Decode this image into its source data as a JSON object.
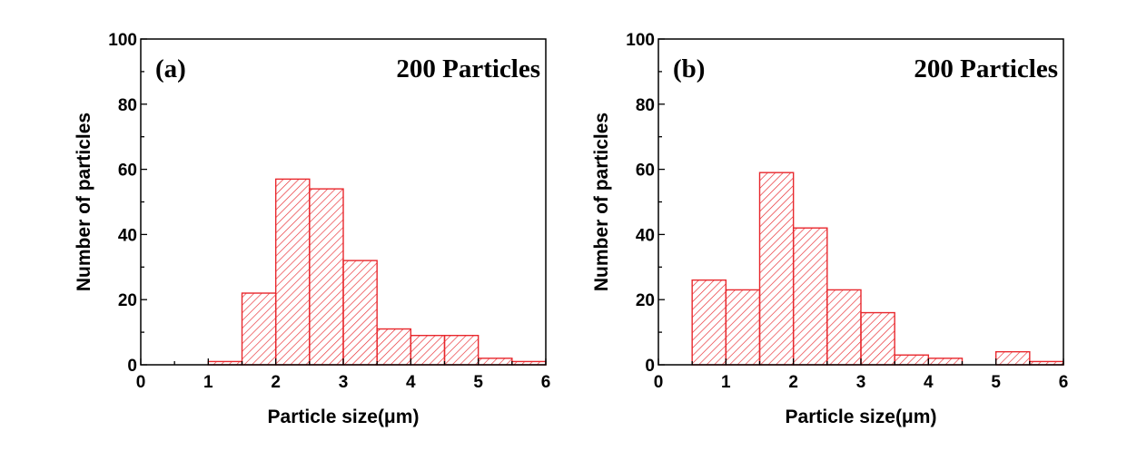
{
  "chart_data": [
    {
      "type": "bar",
      "panel_label": "(a)",
      "annotation": "200 Particles",
      "xlabel": "Particle size(μm)",
      "ylabel": "Number of particles",
      "xlim": [
        0,
        6
      ],
      "ylim": [
        0,
        100
      ],
      "xticks": [
        "0",
        "1",
        "2",
        "3",
        "4",
        "5",
        "6"
      ],
      "yticks": [
        "0",
        "20",
        "40",
        "60",
        "80",
        "100"
      ],
      "bar_color": "#e8282d",
      "bins": [
        {
          "x0": 1.0,
          "x1": 1.5,
          "value": 1
        },
        {
          "x0": 1.5,
          "x1": 2.0,
          "value": 22
        },
        {
          "x0": 2.0,
          "x1": 2.5,
          "value": 57
        },
        {
          "x0": 2.5,
          "x1": 3.0,
          "value": 54
        },
        {
          "x0": 3.0,
          "x1": 3.5,
          "value": 32
        },
        {
          "x0": 3.5,
          "x1": 4.0,
          "value": 11
        },
        {
          "x0": 4.0,
          "x1": 4.5,
          "value": 9
        },
        {
          "x0": 4.5,
          "x1": 5.0,
          "value": 9
        },
        {
          "x0": 5.0,
          "x1": 5.5,
          "value": 2
        },
        {
          "x0": 5.5,
          "x1": 6.0,
          "value": 1
        }
      ]
    },
    {
      "type": "bar",
      "panel_label": "(b)",
      "annotation": "200 Particles",
      "xlabel": "Particle size(μm)",
      "ylabel": "Number of particles",
      "xlim": [
        0,
        6
      ],
      "ylim": [
        0,
        100
      ],
      "xticks": [
        "0",
        "1",
        "2",
        "3",
        "4",
        "5",
        "6"
      ],
      "yticks": [
        "0",
        "20",
        "40",
        "60",
        "80",
        "100"
      ],
      "bar_color": "#e8282d",
      "bins": [
        {
          "x0": 0.5,
          "x1": 1.0,
          "value": 26
        },
        {
          "x0": 1.0,
          "x1": 1.5,
          "value": 23
        },
        {
          "x0": 1.5,
          "x1": 2.0,
          "value": 59
        },
        {
          "x0": 2.0,
          "x1": 2.5,
          "value": 42
        },
        {
          "x0": 2.5,
          "x1": 3.0,
          "value": 23
        },
        {
          "x0": 3.0,
          "x1": 3.5,
          "value": 16
        },
        {
          "x0": 3.5,
          "x1": 4.0,
          "value": 3
        },
        {
          "x0": 4.0,
          "x1": 4.5,
          "value": 2
        },
        {
          "x0": 4.5,
          "x1": 5.0,
          "value": 0
        },
        {
          "x0": 5.0,
          "x1": 5.5,
          "value": 4
        },
        {
          "x0": 5.5,
          "x1": 6.0,
          "value": 1
        }
      ]
    }
  ]
}
